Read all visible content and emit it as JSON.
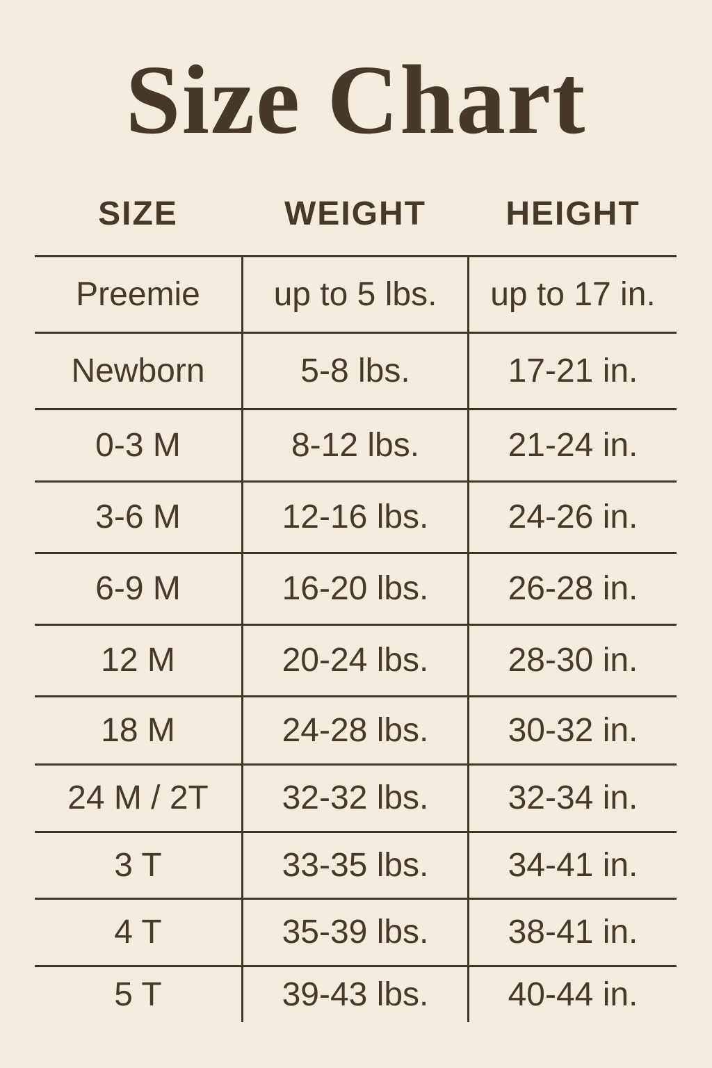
{
  "title": "Size Chart",
  "chart_data": {
    "type": "table",
    "title": "Size Chart",
    "columns": [
      "SIZE",
      "WEIGHT",
      "HEIGHT"
    ],
    "rows": [
      [
        "Preemie",
        "up to 5 lbs.",
        "up to 17 in."
      ],
      [
        "Newborn",
        "5-8 lbs.",
        "17-21 in."
      ],
      [
        "0-3 M",
        "8-12 lbs.",
        "21-24 in."
      ],
      [
        "3-6 M",
        "12-16 lbs.",
        "24-26 in."
      ],
      [
        "6-9 M",
        "16-20 lbs.",
        "26-28 in."
      ],
      [
        "12 M",
        "20-24 lbs.",
        "28-30 in."
      ],
      [
        "18 M",
        "24-28 lbs.",
        "30-32 in."
      ],
      [
        "24 M / 2T",
        "32-32 lbs.",
        "32-34 in."
      ],
      [
        "3 T",
        "33-35 lbs.",
        "34-41 in."
      ],
      [
        "4 T",
        "35-39 lbs.",
        "38-41 in."
      ],
      [
        "5 T",
        "39-43 lbs.",
        "40-44 in."
      ]
    ]
  },
  "colors": {
    "background": "#f2ebde",
    "text": "#46392a",
    "lines": "#3f3425"
  }
}
